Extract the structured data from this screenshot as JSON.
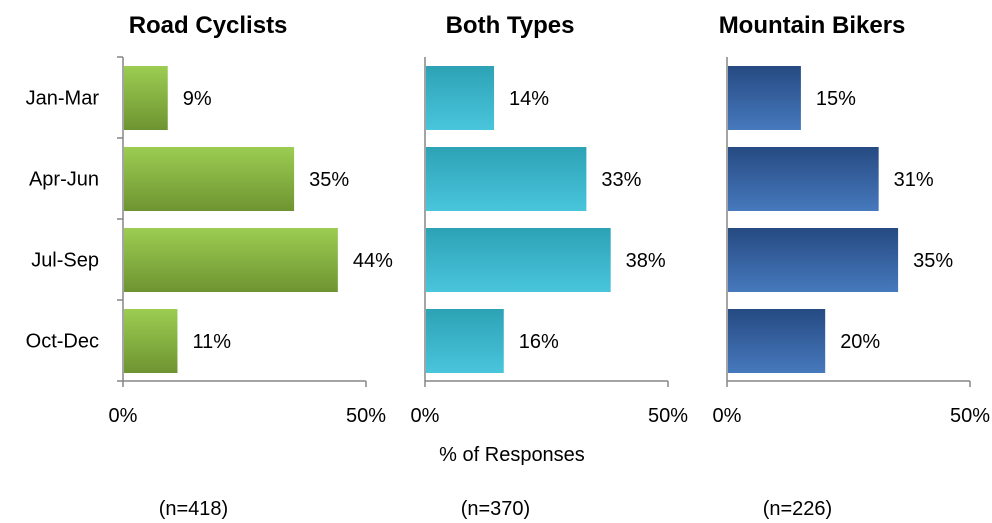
{
  "chart_data": {
    "type": "bar",
    "orientation": "horizontal",
    "categories": [
      "Jan-Mar",
      "Apr-Jun",
      "Jul-Sep",
      "Oct-Dec"
    ],
    "xlabel": "% of Responses",
    "xlim": [
      0,
      50
    ],
    "ticks": [
      "0%",
      "50%"
    ],
    "grid": false,
    "legend": "none",
    "panels": [
      {
        "title": "Road Cyclists",
        "values": [
          9,
          35,
          44,
          11
        ],
        "labels": [
          "9%",
          "35%",
          "44%",
          "11%"
        ],
        "n_label": "(n=418)",
        "color_top": "#9ccd52",
        "color_bottom": "#6e9431"
      },
      {
        "title": "Both Types",
        "values": [
          14,
          33,
          38,
          16
        ],
        "labels": [
          "14%",
          "33%",
          "38%",
          "16%"
        ],
        "n_label": "(n=370)",
        "color_top": "#2da2b5",
        "color_bottom": "#49c5dc"
      },
      {
        "title": "Mountain Bikers",
        "values": [
          15,
          31,
          35,
          20
        ],
        "labels": [
          "15%",
          "31%",
          "35%",
          "20%"
        ],
        "n_label": "(n=226)",
        "color_top": "#264a82",
        "color_bottom": "#4679bd"
      }
    ]
  }
}
